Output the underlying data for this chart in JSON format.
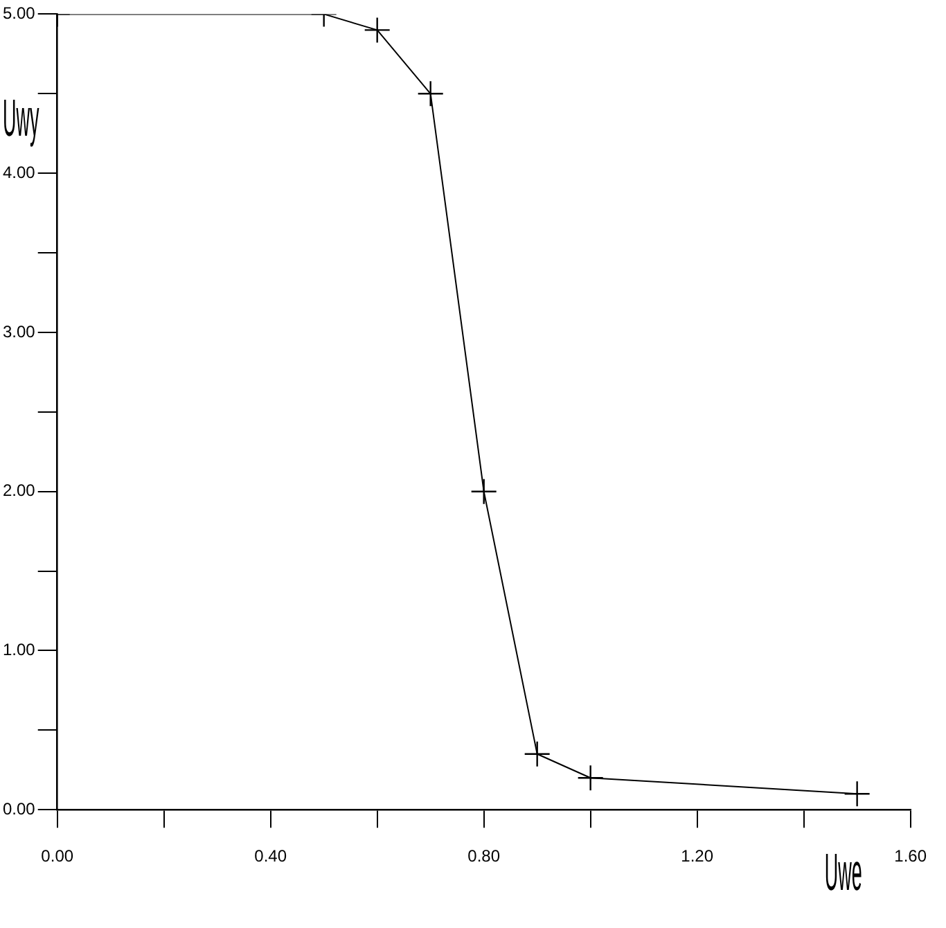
{
  "chart_data": {
    "type": "line",
    "xlabel": "Uwe",
    "ylabel": "Uwy",
    "x": [
      0,
      0.5,
      0.6,
      0.7,
      0.8,
      0.9,
      1.0,
      1.5
    ],
    "series": [
      {
        "color": "#000000",
        "values": [
          5.0,
          5.0,
          4.9,
          4.5,
          2.0,
          0.35,
          0.2,
          0.1
        ]
      }
    ],
    "xlim": [
      0,
      1.6
    ],
    "xticks": [
      {
        "value": 0,
        "label": "0.00"
      },
      {
        "value": 0.2,
        "label": null
      },
      {
        "value": 0.4,
        "label": "0.40"
      },
      {
        "value": 0.6,
        "label": null
      },
      {
        "value": 0.8,
        "label": "0.80"
      },
      {
        "value": 1.0,
        "label": null
      },
      {
        "value": 1.2,
        "label": "1.20"
      },
      {
        "value": 1.4,
        "label": null
      },
      {
        "value": 1.6,
        "label": "1.60"
      }
    ],
    "ylim": [
      0,
      5
    ],
    "yticks": [
      {
        "value": 0,
        "label": "0.00"
      },
      {
        "value": 0.5,
        "label": null
      },
      {
        "value": 1,
        "label": "1.00"
      },
      {
        "value": 1.5,
        "label": null
      },
      {
        "value": 2,
        "label": "2.00"
      },
      {
        "value": 2.5,
        "label": null
      },
      {
        "value": 3,
        "label": "3.00"
      },
      {
        "value": 3.5,
        "label": null
      },
      {
        "value": 4,
        "label": "4.00"
      },
      {
        "value": 4.5,
        "label": null
      },
      {
        "value": 5,
        "label": "5.00"
      }
    ],
    "grid": false,
    "legend": false,
    "marker": "cross",
    "line_style": "solid"
  }
}
